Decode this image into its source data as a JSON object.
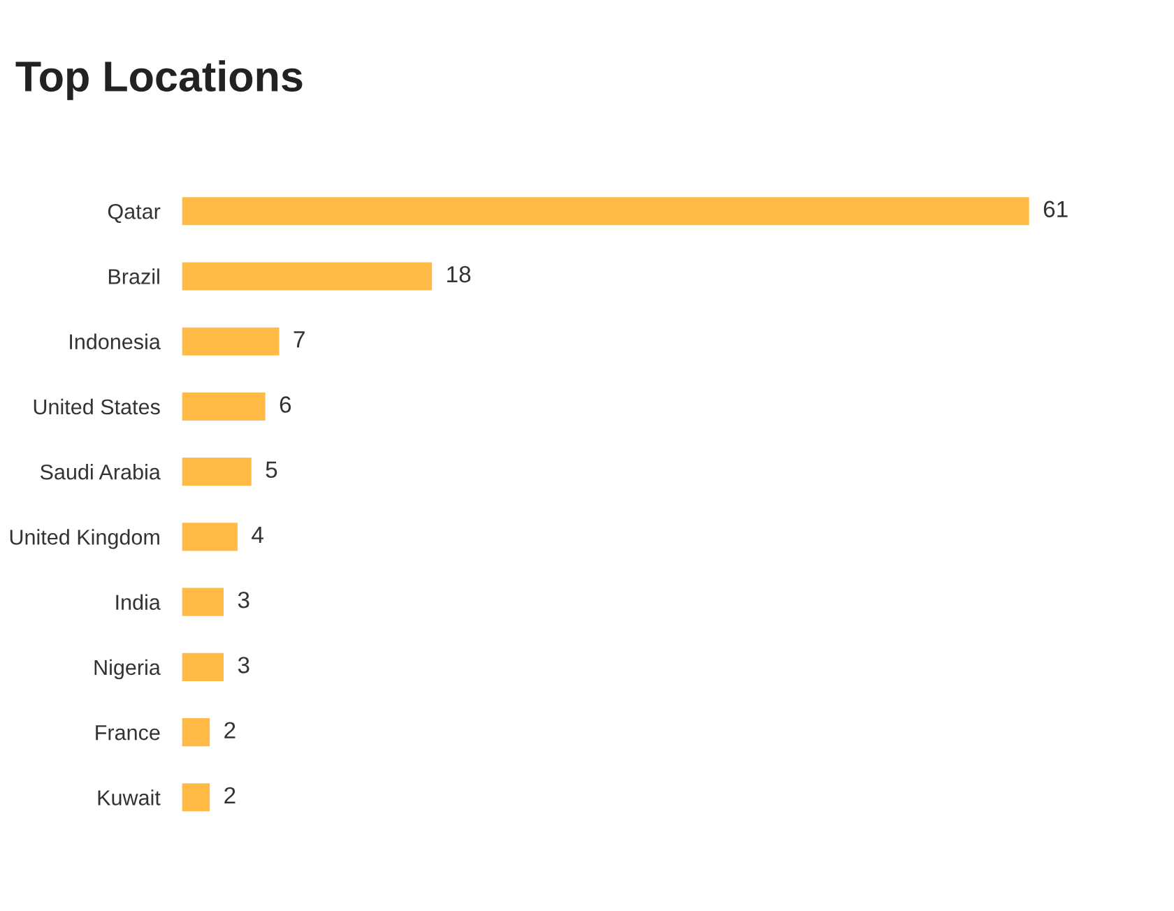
{
  "chart_data": {
    "type": "bar",
    "orientation": "horizontal",
    "title": "Top Locations",
    "categories": [
      "Qatar",
      "Brazil",
      "Indonesia",
      "United States",
      "Saudi Arabia",
      "United Kingdom",
      "India",
      "Nigeria",
      "France",
      "Kuwait"
    ],
    "values": [
      61,
      18,
      7,
      6,
      5,
      4,
      3,
      3,
      2,
      2
    ],
    "color": "#ffbb45",
    "data_labels": true,
    "grid": false,
    "legend": false
  }
}
